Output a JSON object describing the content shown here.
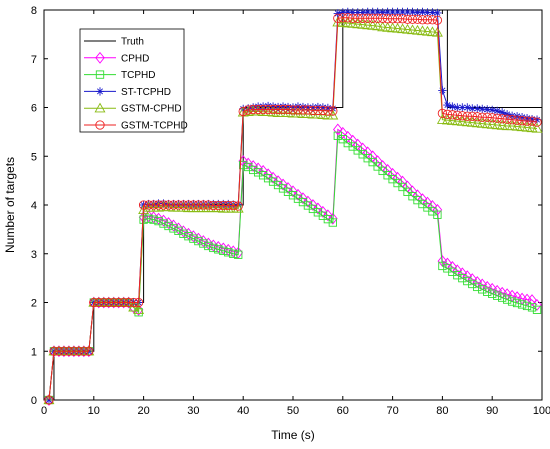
{
  "chart_data": {
    "type": "line",
    "title": "",
    "xlabel": "Time (s)",
    "ylabel": "Number of targets",
    "xlim": [
      0,
      100
    ],
    "ylim": [
      0,
      8
    ],
    "xticks": [
      0,
      10,
      20,
      30,
      40,
      50,
      60,
      70,
      80,
      90,
      100
    ],
    "yticks": [
      0,
      1,
      2,
      3,
      4,
      5,
      6,
      7,
      8
    ],
    "grid": false,
    "legend_position": "top-left",
    "truth": {
      "name": "Truth",
      "color": "#000000",
      "x": [
        1,
        2,
        2,
        10,
        10,
        20,
        20,
        40,
        40,
        60,
        60,
        81,
        81,
        100
      ],
      "y": [
        0,
        0,
        1,
        1,
        2,
        2,
        4,
        4,
        6,
        6,
        8,
        8,
        6,
        6
      ]
    },
    "time_steps": [
      1,
      2,
      3,
      4,
      5,
      6,
      7,
      8,
      9,
      10,
      11,
      12,
      13,
      14,
      15,
      16,
      17,
      18,
      19,
      20,
      21,
      22,
      23,
      24,
      25,
      26,
      27,
      28,
      29,
      30,
      31,
      32,
      33,
      34,
      35,
      36,
      37,
      38,
      39,
      40,
      41,
      42,
      43,
      44,
      45,
      46,
      47,
      48,
      49,
      50,
      51,
      52,
      53,
      54,
      55,
      56,
      57,
      58,
      59,
      60,
      61,
      62,
      63,
      64,
      65,
      66,
      67,
      68,
      69,
      70,
      71,
      72,
      73,
      74,
      75,
      76,
      77,
      78,
      79,
      80,
      81,
      82,
      83,
      84,
      85,
      86,
      87,
      88,
      89,
      90,
      91,
      92,
      93,
      94,
      95,
      96,
      97,
      98,
      99,
      100
    ],
    "series": [
      {
        "name": "CPHD",
        "color": "#ff00ff",
        "marker": "diamond",
        "values": [
          0,
          1,
          1,
          1,
          1,
          1,
          1,
          1,
          1,
          2,
          2,
          2,
          2,
          2,
          2,
          2,
          2,
          1.9,
          1.85,
          3.75,
          3.77,
          3.75,
          3.72,
          3.68,
          3.63,
          3.58,
          3.52,
          3.46,
          3.41,
          3.36,
          3.31,
          3.26,
          3.21,
          3.17,
          3.14,
          3.11,
          3.08,
          3.05,
          3.02,
          4.9,
          4.85,
          4.8,
          4.75,
          4.7,
          4.63,
          4.56,
          4.49,
          4.42,
          4.35,
          4.28,
          4.21,
          4.14,
          4.07,
          4,
          3.93,
          3.86,
          3.79,
          3.72,
          5.55,
          5.48,
          5.4,
          5.32,
          5.24,
          5.16,
          5.08,
          5,
          4.9,
          4.8,
          4.72,
          4.64,
          4.56,
          4.48,
          4.38,
          4.28,
          4.2,
          4.12,
          4.05,
          3.98,
          3.9,
          2.85,
          2.8,
          2.73,
          2.66,
          2.6,
          2.54,
          2.48,
          2.42,
          2.37,
          2.32,
          2.28,
          2.24,
          2.2,
          2.17,
          2.14,
          2.11,
          2.08,
          2.06,
          2.05,
          1.95
        ]
      },
      {
        "name": "TCPHD",
        "color": "#33dd33",
        "marker": "square",
        "values": [
          0,
          1,
          1,
          1,
          1,
          1,
          1,
          1,
          1,
          2,
          2,
          2,
          2,
          2,
          2,
          2,
          2,
          1.9,
          1.8,
          3.7,
          3.72,
          3.7,
          3.67,
          3.62,
          3.57,
          3.52,
          3.47,
          3.41,
          3.36,
          3.31,
          3.26,
          3.21,
          3.16,
          3.12,
          3.09,
          3.06,
          3.03,
          3,
          2.98,
          4.82,
          4.78,
          4.72,
          4.67,
          4.61,
          4.55,
          4.48,
          4.41,
          4.34,
          4.27,
          4.2,
          4.13,
          4.06,
          3.99,
          3.92,
          3.85,
          3.78,
          3.71,
          3.64,
          5.42,
          5.35,
          5.27,
          5.2,
          5.12,
          5.04,
          4.96,
          4.88,
          4.79,
          4.7,
          4.61,
          4.53,
          4.45,
          4.37,
          4.27,
          4.18,
          4.1,
          4.02,
          3.95,
          3.87,
          3.8,
          2.75,
          2.7,
          2.63,
          2.56,
          2.5,
          2.44,
          2.38,
          2.32,
          2.27,
          2.22,
          2.18,
          2.14,
          2.1,
          2.06,
          2.02,
          1.99,
          1.96,
          1.93,
          1.9,
          1.85
        ]
      },
      {
        "name": "ST-TCPHD",
        "color": "#1a1acc",
        "marker": "star",
        "values": [
          0,
          1,
          1,
          1,
          1,
          1,
          1,
          1,
          1,
          2,
          2,
          2,
          2,
          2,
          2,
          2,
          2,
          2,
          2,
          4,
          4.02,
          4.02,
          4.03,
          4.03,
          4.02,
          4.02,
          4.02,
          4.02,
          4.02,
          4.02,
          4.02,
          4.02,
          4.02,
          4.02,
          4.02,
          4.02,
          4.02,
          4.01,
          4.01,
          5.97,
          5.98,
          6,
          6.02,
          6.02,
          6.03,
          6.02,
          6.01,
          6.02,
          6.01,
          6,
          6.02,
          6.01,
          6,
          6,
          6.01,
          6,
          5.99,
          5.98,
          7.93,
          7.95,
          7.96,
          7.95,
          7.95,
          7.95,
          7.96,
          7.96,
          7.96,
          7.95,
          7.96,
          7.96,
          7.96,
          7.96,
          7.96,
          7.96,
          7.95,
          7.96,
          7.95,
          7.95,
          7.94,
          6.35,
          6.05,
          6.02,
          6,
          6,
          6,
          5.98,
          5.98,
          5.97,
          5.96,
          5.95,
          5.93,
          5.9,
          5.86,
          5.83,
          5.82,
          5.8,
          5.78,
          5.76,
          5.75
        ]
      },
      {
        "name": "GSTM-CPHD",
        "color": "#88bb11",
        "marker": "triangle",
        "values": [
          0,
          1,
          1,
          1,
          1,
          1,
          1,
          1,
          1,
          2,
          2,
          2,
          2,
          2,
          2,
          2,
          2,
          1.9,
          1.85,
          3.9,
          3.95,
          3.95,
          3.95,
          3.96,
          3.96,
          3.95,
          3.95,
          3.95,
          3.94,
          3.94,
          3.94,
          3.94,
          3.94,
          3.94,
          3.94,
          3.93,
          3.93,
          3.93,
          3.93,
          5.9,
          5.91,
          5.92,
          5.92,
          5.91,
          5.91,
          5.9,
          5.89,
          5.89,
          5.89,
          5.88,
          5.88,
          5.87,
          5.87,
          5.86,
          5.86,
          5.85,
          5.84,
          5.84,
          7.75,
          7.74,
          7.73,
          7.72,
          7.71,
          7.7,
          7.69,
          7.68,
          7.67,
          7.65,
          7.64,
          7.63,
          7.62,
          7.61,
          7.6,
          7.59,
          7.58,
          7.57,
          7.56,
          7.55,
          7.54,
          5.75,
          5.74,
          5.73,
          5.72,
          5.71,
          5.7,
          5.69,
          5.68,
          5.67,
          5.66,
          5.65,
          5.64,
          5.63,
          5.62,
          5.62,
          5.61,
          5.6,
          5.59,
          5.58,
          5.57
        ]
      },
      {
        "name": "GSTM-TCPHD",
        "color": "#ee2222",
        "marker": "circle",
        "values": [
          0,
          1,
          1,
          1,
          1,
          1,
          1,
          1,
          1,
          2,
          2,
          2,
          2,
          2,
          2,
          2,
          2,
          2,
          2,
          4,
          4,
          4,
          4,
          4,
          4,
          4,
          4,
          4,
          4,
          4,
          4,
          4,
          4,
          3.99,
          3.99,
          3.99,
          3.99,
          3.99,
          3.98,
          5.92,
          5.95,
          5.96,
          5.96,
          5.96,
          5.96,
          5.96,
          5.96,
          5.96,
          5.96,
          5.95,
          5.95,
          5.95,
          5.95,
          5.94,
          5.94,
          5.94,
          5.93,
          5.93,
          7.83,
          7.84,
          7.84,
          7.83,
          7.83,
          7.83,
          7.83,
          7.83,
          7.83,
          7.83,
          7.82,
          7.82,
          7.82,
          7.82,
          7.81,
          7.81,
          7.81,
          7.8,
          7.8,
          7.8,
          7.79,
          5.88,
          5.86,
          5.85,
          5.84,
          5.83,
          5.82,
          5.82,
          5.81,
          5.8,
          5.8,
          5.79,
          5.78,
          5.77,
          5.76,
          5.75,
          5.74,
          5.73,
          5.72,
          5.72,
          5.7
        ]
      }
    ],
    "legend_order": [
      "Truth",
      "CPHD",
      "TCPHD",
      "ST-TCPHD",
      "GSTM-CPHD",
      "GSTM-TCPHD"
    ]
  }
}
